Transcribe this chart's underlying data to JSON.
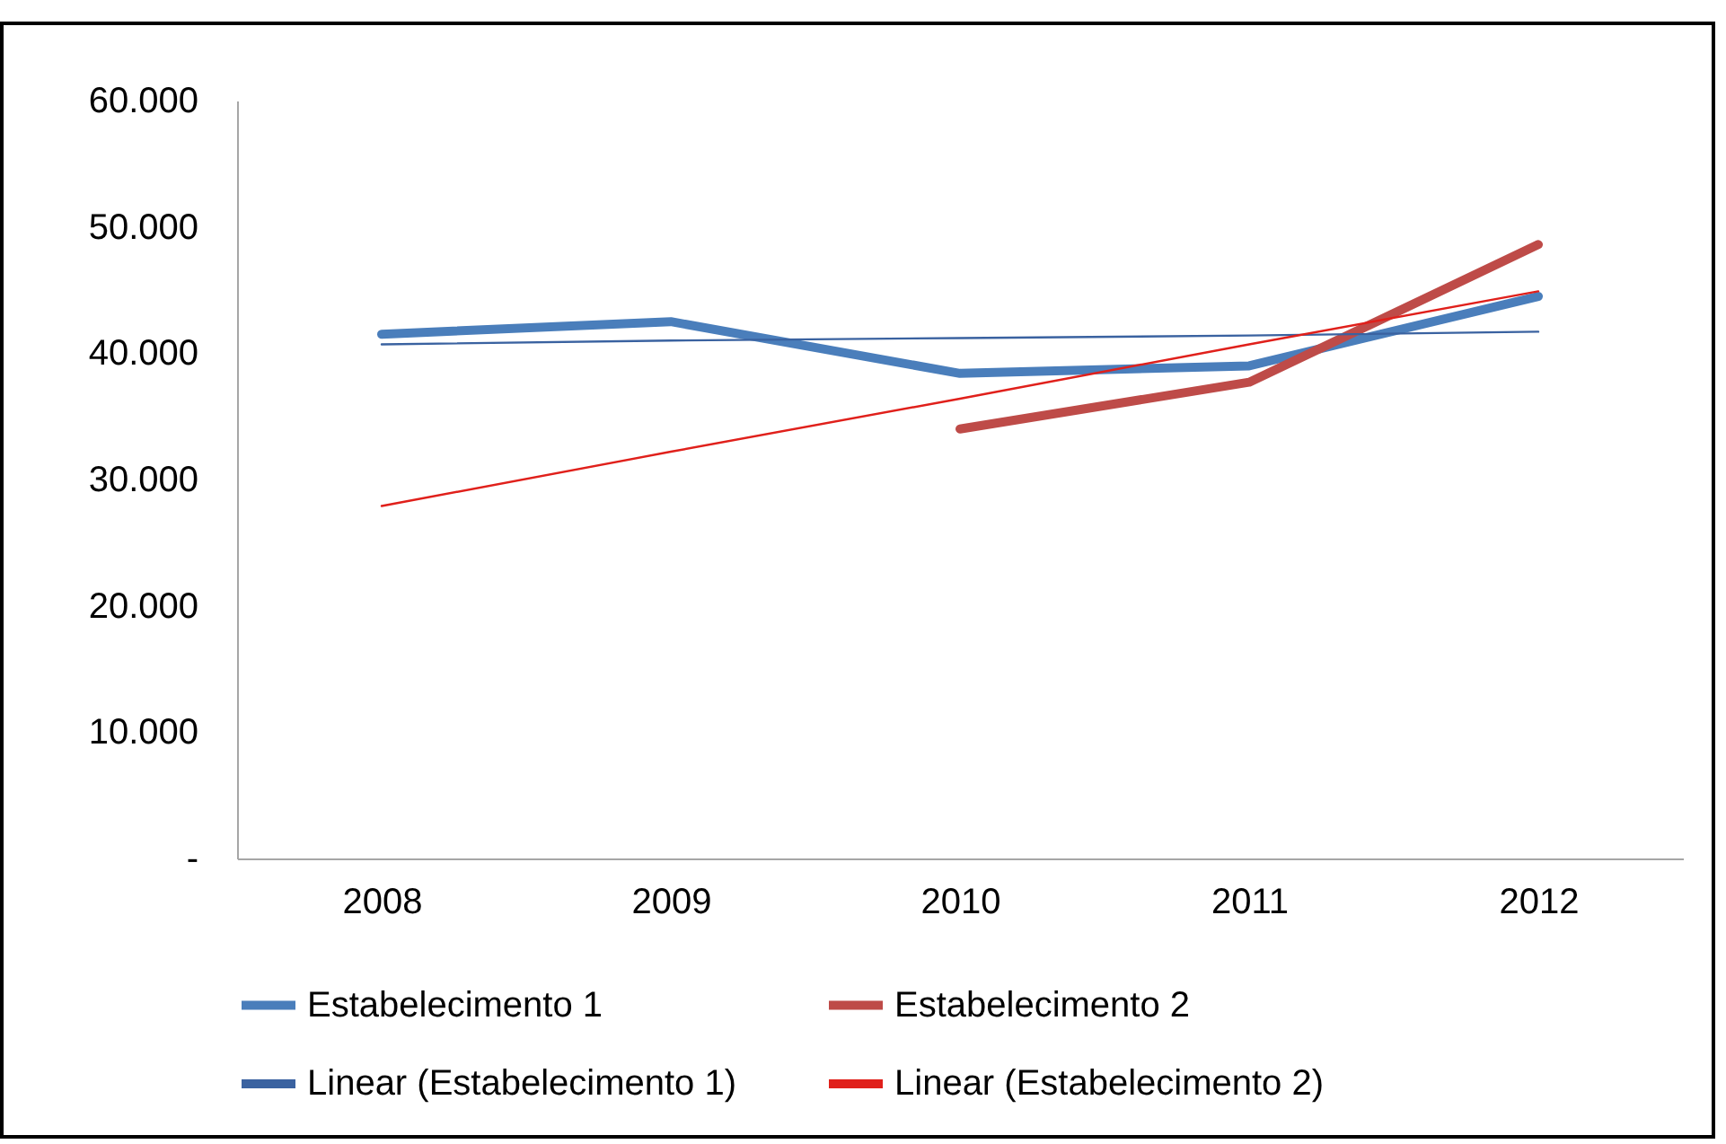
{
  "chart_data": {
    "type": "line",
    "categories": [
      "2008",
      "2009",
      "2010",
      "2011",
      "2012"
    ],
    "series": [
      {
        "name": "Estabelecimento 1",
        "color": "#4a7ebb",
        "values": [
          41500,
          42500,
          38400,
          39000,
          44500
        ]
      },
      {
        "name": "Estabelecimento 2",
        "color": "#be4b48",
        "values": [
          null,
          null,
          34000,
          37700,
          48600
        ]
      },
      {
        "name": "Linear (Estabelecimento 1)",
        "color": "#3a62a0",
        "values": [
          40700,
          41000,
          41200,
          41400,
          41700
        ]
      },
      {
        "name": "Linear (Estabelecimento 2)",
        "color": "#e0201b",
        "values": [
          27900,
          32200,
          36400,
          40700,
          44900
        ]
      }
    ],
    "ylim": [
      0,
      60000
    ],
    "yticks": [
      {
        "value": 0,
        "label": "-"
      },
      {
        "value": 10000,
        "label": "10.000"
      },
      {
        "value": 20000,
        "label": "20.000"
      },
      {
        "value": 30000,
        "label": "30.000"
      },
      {
        "value": 40000,
        "label": "40.000"
      },
      {
        "value": 50000,
        "label": "50.000"
      },
      {
        "value": 60000,
        "label": "60.000"
      }
    ],
    "grid": false,
    "legend": "bottom",
    "marker": "none"
  }
}
